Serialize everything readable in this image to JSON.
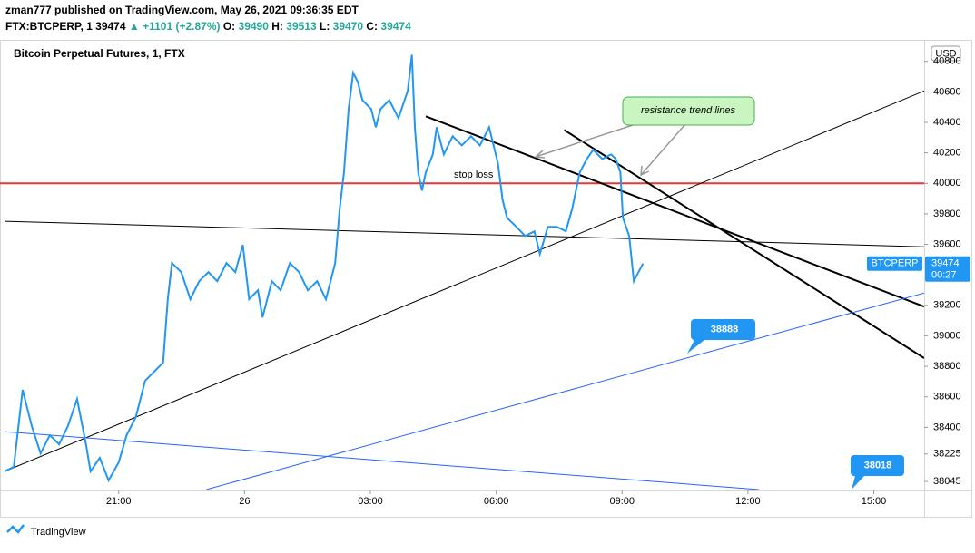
{
  "header": {
    "line1": "zman777 published on TradingView.com, May 26, 2021 09:36:35 EDT",
    "symbol": "FTX:BTCPERP, 1",
    "price": "39474",
    "arrow": "▲",
    "change": "+1101 (+2.87%)",
    "ohlc": [
      {
        "key": "O:",
        "value": "39490"
      },
      {
        "key": "H:",
        "value": "39513"
      },
      {
        "key": "L:",
        "value": "39470"
      },
      {
        "key": "C:",
        "value": "39474"
      }
    ]
  },
  "chart_data": {
    "type": "line",
    "title": "Bitcoin Perpetual Futures, 1, FTX",
    "currency": "USD",
    "xlim": [
      18.28,
      40.2
    ],
    "ylim": [
      37992,
      40935
    ],
    "xticks": [
      {
        "value": 21,
        "label": "21:00"
      },
      {
        "value": 24,
        "label": "26"
      },
      {
        "value": 27,
        "label": "03:00"
      },
      {
        "value": 30,
        "label": "06:00"
      },
      {
        "value": 33,
        "label": "09:00"
      },
      {
        "value": 36,
        "label": "12:00"
      },
      {
        "value": 39,
        "label": "15:00"
      }
    ],
    "yticks": [
      38045,
      38225,
      38400,
      38600,
      38800,
      39000,
      39200,
      39600,
      39800,
      40000,
      40200,
      40400,
      40600,
      40800
    ],
    "series": [
      {
        "name": "BTCPERP",
        "color": "#2196f3",
        "x": [
          18.28,
          18.5,
          18.71,
          18.93,
          19.14,
          19.36,
          19.58,
          19.79,
          20.01,
          20.22,
          20.33,
          20.55,
          20.76,
          21.0,
          21.19,
          21.41,
          21.63,
          21.84,
          22.06,
          22.17,
          22.27,
          22.49,
          22.71,
          22.92,
          23.14,
          23.35,
          23.57,
          23.78,
          23.96,
          24.11,
          24.32,
          24.43,
          24.65,
          24.86,
          25.08,
          25.3,
          25.51,
          25.73,
          25.94,
          26.05,
          26.16,
          26.27,
          26.37,
          26.48,
          26.59,
          26.7,
          26.81,
          27.02,
          27.13,
          27.24,
          27.45,
          27.67,
          27.89,
          27.99,
          28.06,
          28.14,
          28.23,
          28.32,
          28.49,
          28.58,
          28.75,
          28.96,
          29.18,
          29.4,
          29.61,
          29.83,
          30.04,
          30.15,
          30.26,
          30.48,
          30.69,
          30.91,
          31.04,
          31.23,
          31.45,
          31.66,
          31.81,
          31.99,
          32.16,
          32.31,
          32.53,
          32.74,
          32.85,
          32.96,
          33.02,
          33.17,
          33.28,
          33.39,
          33.5
        ],
        "values": [
          38111,
          38141,
          38646,
          38408,
          38230,
          38349,
          38289,
          38408,
          38586,
          38289,
          38111,
          38200,
          38052,
          38170,
          38349,
          38467,
          38705,
          38764,
          38824,
          39240,
          39477,
          39418,
          39240,
          39358,
          39418,
          39358,
          39477,
          39418,
          39596,
          39240,
          39299,
          39121,
          39358,
          39299,
          39477,
          39418,
          39299,
          39358,
          39240,
          39358,
          39477,
          39834,
          40071,
          40487,
          40725,
          40665,
          40546,
          40487,
          40368,
          40487,
          40546,
          40428,
          40606,
          40843,
          40368,
          40071,
          39952,
          40071,
          40190,
          40368,
          40190,
          40309,
          40249,
          40309,
          40249,
          40368,
          40131,
          39893,
          39774,
          39715,
          39655,
          39685,
          39537,
          39715,
          39715,
          39685,
          39834,
          40071,
          40160,
          40220,
          40160,
          40190,
          40160,
          40071,
          39774,
          39655,
          39358,
          39418,
          39474
        ]
      }
    ],
    "last_price": 39474,
    "countdown": "00:27",
    "hline": {
      "value": 40000,
      "color": "#e53935"
    },
    "trend_lines": [
      {
        "x": [
          18.28,
          40.2
        ],
        "y": [
          38111,
          40606
        ],
        "color": "#000000",
        "width": 1
      },
      {
        "x": [
          18.28,
          40.2
        ],
        "y": [
          39751,
          39584
        ],
        "color": "#000000",
        "width": 1
      },
      {
        "x": [
          28.32,
          40.2
        ],
        "y": [
          40440,
          39192
        ],
        "color": "#000000",
        "width": 2
      },
      {
        "x": [
          31.62,
          40.2
        ],
        "y": [
          40350,
          38854
        ],
        "color": "#000000",
        "width": 2
      },
      {
        "x": [
          23.09,
          40.2
        ],
        "y": [
          37992,
          39281
        ],
        "color": "#2962ff",
        "width": 1
      },
      {
        "x": [
          18.28,
          36.26
        ],
        "y": [
          38372,
          37992
        ],
        "color": "#2962ff",
        "width": 1
      }
    ],
    "annotations": {
      "callout": "resistance trend lines",
      "stop_loss": "stop loss",
      "label_1": "38888",
      "label_2": "38018"
    }
  },
  "footer": "TradingView"
}
